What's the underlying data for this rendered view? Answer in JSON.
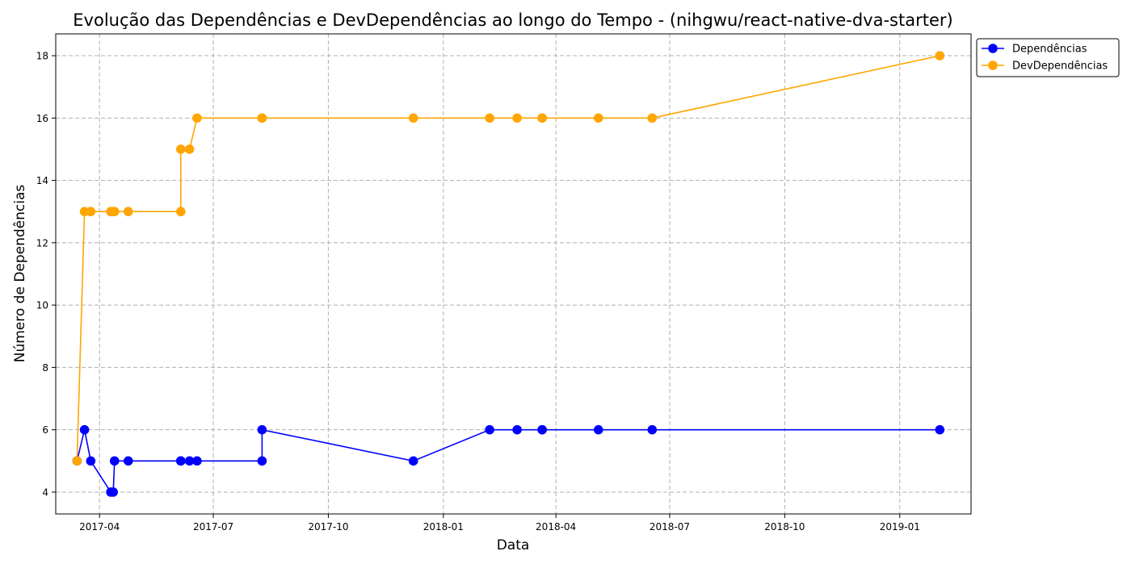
{
  "chart_data": {
    "type": "line",
    "title": "Evolução das Dependências e DevDependências ao longo do Tempo - (nihgwu/react-native-dva-starter)",
    "xlabel": "Data",
    "ylabel": "Número de Dependências",
    "x_axis_type": "date",
    "xlim": [
      "2017-02-25",
      "2019-02-27"
    ],
    "ylim": [
      3.3,
      18.7
    ],
    "x_ticks": [
      "2017-04-01",
      "2017-07-01",
      "2017-10-01",
      "2018-01-01",
      "2018-04-01",
      "2018-07-01",
      "2018-10-01",
      "2019-01-01"
    ],
    "x_tick_labels": [
      "2017-04",
      "2017-07",
      "2017-10",
      "2018-01",
      "2018-04",
      "2018-07",
      "2018-10",
      "2019-01"
    ],
    "y_ticks": [
      4,
      6,
      8,
      10,
      12,
      14,
      16,
      18
    ],
    "y_tick_labels": [
      "4",
      "6",
      "8",
      "10",
      "12",
      "14",
      "16",
      "18"
    ],
    "grid": true,
    "legend_position": "outside-top-right",
    "x": [
      "2017-03-14",
      "2017-03-20",
      "2017-03-25",
      "2017-04-10",
      "2017-04-12",
      "2017-04-13",
      "2017-04-24",
      "2017-06-05",
      "2017-06-05",
      "2017-06-12",
      "2017-06-18",
      "2017-08-09",
      "2017-08-09",
      "2017-12-08",
      "2018-02-07",
      "2018-03-01",
      "2018-03-21",
      "2018-03-21",
      "2018-05-05",
      "2018-06-17",
      "2019-02-02"
    ],
    "series": [
      {
        "name": "Dependências",
        "color": "#0000ff",
        "values": [
          5,
          6,
          5,
          4,
          4,
          5,
          5,
          5,
          5,
          5,
          5,
          5,
          6,
          5,
          6,
          6,
          6,
          6,
          6,
          6,
          6
        ]
      },
      {
        "name": "DevDependências",
        "color": "#ffa500",
        "values": [
          5,
          13,
          13,
          13,
          13,
          13,
          13,
          13,
          15,
          15,
          16,
          16,
          16,
          16,
          16,
          16,
          16,
          16,
          16,
          16,
          18
        ]
      }
    ]
  }
}
